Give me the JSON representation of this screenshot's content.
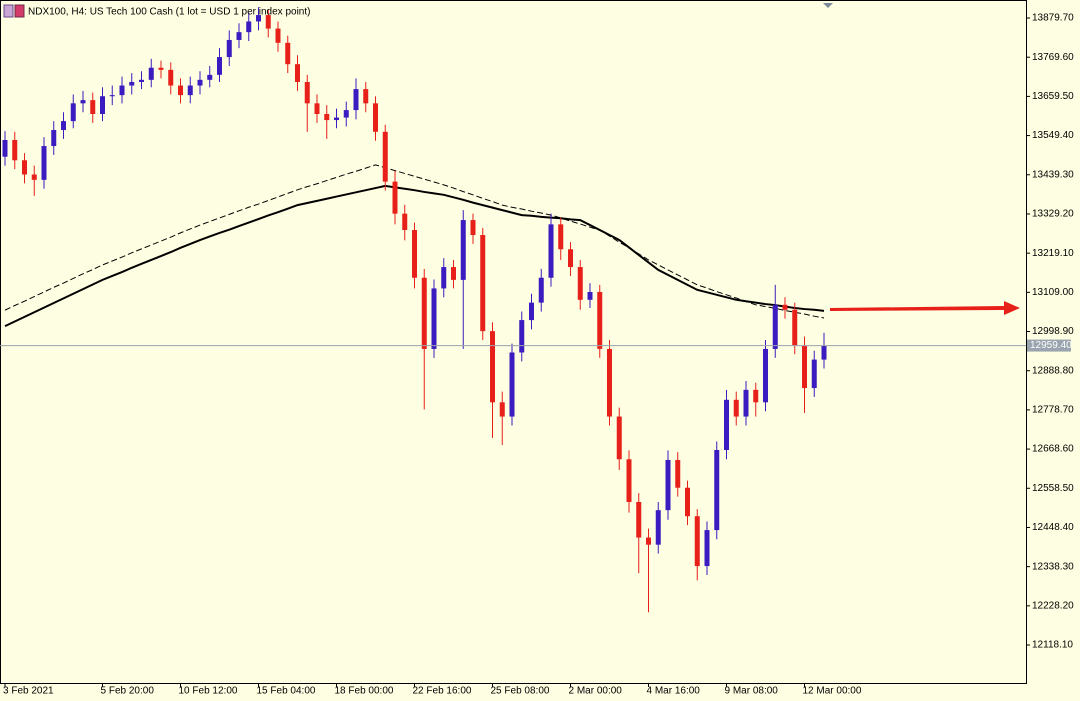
{
  "chart_data": {
    "type": "candlestick",
    "title": "NDX100, H4:  US Tech 100 Cash (1 lot = USD 1 per index point)",
    "categories": [
      "3 Feb 2021",
      null,
      null,
      null,
      null,
      null,
      null,
      null,
      null,
      null,
      "5 Feb 20:00",
      null,
      null,
      null,
      null,
      null,
      null,
      null,
      "10 Feb 12:00",
      null,
      null,
      null,
      null,
      null,
      null,
      null,
      "15 Feb 04:00",
      null,
      null,
      null,
      null,
      null,
      null,
      null,
      "18 Feb 00:00",
      null,
      null,
      null,
      null,
      null,
      null,
      null,
      "22 Feb 16:00",
      null,
      null,
      null,
      null,
      null,
      null,
      null,
      "25 Feb 08:00",
      null,
      null,
      null,
      null,
      null,
      null,
      null,
      "2 Mar 00:00",
      null,
      null,
      null,
      null,
      null,
      null,
      null,
      "4 Mar 16:00",
      null,
      null,
      null,
      null,
      null,
      null,
      null,
      "9 Mar 08:00",
      null,
      null,
      null,
      null,
      null,
      null,
      null,
      "12 Mar 00:00",
      null,
      null
    ],
    "open": [
      13490,
      13537,
      13480,
      13440,
      13425,
      13520,
      13565,
      13590,
      13640,
      13649,
      13610,
      13660,
      13663,
      13690,
      13700,
      13706,
      13740,
      13734,
      13690,
      13663,
      13690,
      13706,
      13720,
      13770,
      13818,
      13840,
      13870,
      13888,
      13850,
      13810,
      13750,
      13700,
      13640,
      13610,
      13593,
      13600,
      13621,
      13680,
      13640,
      13560,
      13420,
      13330,
      13284,
      13150,
      12950,
      13120,
      13180,
      13144,
      13312,
      13270,
      13000,
      12800,
      12760,
      12940,
      13031,
      13080,
      13150,
      13300,
      13230,
      13180,
      13088,
      13110,
      12950,
      12760,
      12640,
      12520,
      12420,
      12400,
      12497,
      12638,
      12560,
      12480,
      12340,
      12441,
      12666,
      12807,
      12760,
      12835,
      12800,
      12950,
      13074,
      13060,
      12960,
      12840,
      12920
    ],
    "high": [
      13562,
      13560,
      13500,
      13465,
      13545,
      13590,
      13615,
      13665,
      13675,
      13670,
      13685,
      13690,
      13715,
      13725,
      13730,
      13765,
      13760,
      13755,
      13710,
      13715,
      13730,
      13745,
      13795,
      13845,
      13865,
      13895,
      13910,
      13905,
      13870,
      13830,
      13775,
      13720,
      13665,
      13635,
      13625,
      13645,
      13710,
      13700,
      13660,
      13580,
      13450,
      13355,
      13305,
      13175,
      13145,
      13205,
      13200,
      13340,
      13330,
      13290,
      13025,
      12830,
      12965,
      13055,
      13105,
      13175,
      13330,
      13320,
      13250,
      13200,
      13135,
      13130,
      12975,
      12785,
      12665,
      12545,
      12445,
      12520,
      12665,
      12660,
      12580,
      12500,
      12465,
      12690,
      12835,
      12830,
      12860,
      12855,
      12975,
      13130,
      13095,
      13080,
      12985,
      12945,
      12995
    ],
    "low": [
      13465,
      13455,
      13415,
      13380,
      13400,
      13495,
      13540,
      13570,
      13615,
      13585,
      13590,
      13635,
      13640,
      13665,
      13680,
      13685,
      13710,
      13665,
      13640,
      13640,
      13665,
      13685,
      13700,
      13745,
      13795,
      13815,
      13845,
      13825,
      13785,
      13725,
      13675,
      13560,
      13585,
      13540,
      13570,
      13575,
      13595,
      13615,
      13535,
      13395,
      13300,
      13255,
      13120,
      12780,
      12925,
      13095,
      13120,
      12950,
      13245,
      12975,
      12700,
      12680,
      12735,
      12915,
      13005,
      13055,
      13125,
      13200,
      13155,
      13060,
      13065,
      12925,
      12735,
      12610,
      12490,
      12320,
      12210,
      12375,
      12470,
      12535,
      12455,
      12300,
      12315,
      12415,
      12640,
      12735,
      12735,
      12760,
      12775,
      12925,
      13035,
      12935,
      12770,
      12815,
      12895
    ],
    "close": [
      13537,
      13480,
      13440,
      13425,
      13520,
      13565,
      13590,
      13640,
      13649,
      13610,
      13660,
      13663,
      13690,
      13700,
      13706,
      13740,
      13734,
      13690,
      13663,
      13690,
      13706,
      13720,
      13770,
      13818,
      13840,
      13870,
      13888,
      13850,
      13810,
      13750,
      13700,
      13640,
      13610,
      13593,
      13600,
      13621,
      13680,
      13640,
      13560,
      13420,
      13330,
      13284,
      13150,
      12950,
      13120,
      13180,
      13144,
      13312,
      13270,
      13000,
      12800,
      12760,
      12940,
      13031,
      13080,
      13150,
      13300,
      13230,
      13180,
      13088,
      13110,
      12950,
      12760,
      12640,
      12520,
      12420,
      12400,
      12497,
      12638,
      12560,
      12480,
      12340,
      12441,
      12666,
      12807,
      12760,
      12835,
      12800,
      12950,
      13074,
      13060,
      12960,
      12840,
      12920,
      12959.4
    ],
    "up_color": "#3a1cc0",
    "down_color": "#e8201a",
    "lines": [
      {
        "color": "#000000",
        "dash": "solid",
        "values": [
          13014,
          13027,
          13040,
          13053,
          13066,
          13079,
          13092,
          13105,
          13118,
          13131,
          13144,
          13155,
          13166,
          13178,
          13189,
          13200,
          13211,
          13222,
          13234,
          13245,
          13256,
          13266,
          13276,
          13285,
          13295,
          13305,
          13315,
          13325,
          13334,
          13344,
          13354,
          13360,
          13366,
          13372,
          13378,
          13384,
          13390,
          13396,
          13402,
          13408,
          13404,
          13400,
          13396,
          13391,
          13387,
          13383,
          13376,
          13369,
          13361,
          13354,
          13347,
          13340,
          13333,
          13326,
          13324,
          13321,
          13319,
          13317,
          13314,
          13312,
          13298,
          13284,
          13270,
          13256,
          13235,
          13214,
          13193,
          13172,
          13158,
          13144,
          13130,
          13116,
          13109,
          13102,
          13095,
          13088,
          13084,
          13080,
          13076,
          13073,
          13069,
          13065,
          13062,
          13060,
          13057
        ]
      },
      {
        "color": "#000000",
        "dash": "dashed",
        "values": [
          13059,
          13072,
          13084,
          13097,
          13110,
          13123,
          13135,
          13148,
          13161,
          13173,
          13186,
          13197,
          13208,
          13220,
          13231,
          13242,
          13253,
          13264,
          13276,
          13287,
          13298,
          13308,
          13318,
          13328,
          13338,
          13348,
          13357,
          13367,
          13377,
          13387,
          13397,
          13406,
          13414,
          13423,
          13432,
          13441,
          13449,
          13458,
          13467,
          13459,
          13451,
          13443,
          13435,
          13427,
          13419,
          13411,
          13402,
          13392,
          13383,
          13373,
          13364,
          13354,
          13348,
          13343,
          13337,
          13332,
          13326,
          13318,
          13309,
          13301,
          13292,
          13284,
          13267,
          13250,
          13234,
          13217,
          13200,
          13186,
          13172,
          13158,
          13144,
          13130,
          13121,
          13111,
          13102,
          13093,
          13083,
          13074,
          13069,
          13064,
          13058,
          13053,
          13048,
          13042,
          13037
        ]
      }
    ],
    "last_price": {
      "value": 12959.4,
      "label": "12959.40"
    },
    "ylim": [
      12011.4,
      13930.3
    ],
    "yticks": [
      {
        "value": 13879.7,
        "label": "13879.70"
      },
      {
        "value": 13769.6,
        "label": "13769.60"
      },
      {
        "value": 13659.5,
        "label": "13659.50"
      },
      {
        "value": 13549.4,
        "label": "13549.40"
      },
      {
        "value": 13439.3,
        "label": "13439.30"
      },
      {
        "value": 13329.2,
        "label": "13329.20"
      },
      {
        "value": 13219.1,
        "label": "13219.10"
      },
      {
        "value": 13109,
        "label": "13109.00"
      },
      {
        "value": 12998.9,
        "label": "12998.90"
      },
      {
        "value": 12888.8,
        "label": "12888.80"
      },
      {
        "value": 12778.7,
        "label": "12778.70"
      },
      {
        "value": 12668.6,
        "label": "12668.60"
      },
      {
        "value": 12558.5,
        "label": "12558.50"
      },
      {
        "value": 12448.4,
        "label": "12448.40"
      },
      {
        "value": 12338.3,
        "label": "12338.30"
      },
      {
        "value": 12228.2,
        "label": "12228.20"
      },
      {
        "value": 12118.1,
        "label": "12118.10"
      }
    ]
  }
}
